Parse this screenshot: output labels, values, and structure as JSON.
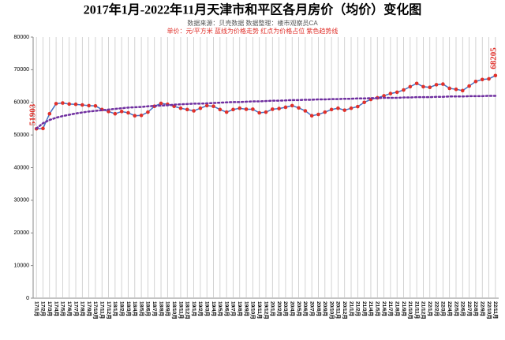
{
  "chart_data": {
    "type": "line",
    "title": "2017年1月-2022年11月天津市和平区各月房价（均价）变化图",
    "subtitle": "数据来源：贝壳数据    数据整理：楼市观察员CA",
    "note": "单价：元/平方米    蓝线为价格走势    红点为价格占位    紫色趋势线",
    "categories": [
      "17/1月",
      "17/2月",
      "17/3月",
      "17/4月",
      "17/5月",
      "17/6月",
      "17/7月",
      "17/8月",
      "17/9月",
      "17/10月",
      "17/11月",
      "17/12月",
      "18/1月",
      "18/2月",
      "18/3月",
      "18/4月",
      "18/5月",
      "18/6月",
      "18/7月",
      "18/8月",
      "18/9月",
      "18/10月",
      "18/11月",
      "18/12月",
      "19/1月",
      "19/2月",
      "19/3月",
      "19/4月",
      "19/5月",
      "19/6月",
      "19/7月",
      "19/8月",
      "19/9月",
      "19/10月",
      "19/11月",
      "19/12月",
      "20/1月",
      "20/2月",
      "20/3月",
      "20/4月",
      "20/5月",
      "20/6月",
      "20/7月",
      "20/8月",
      "20/9月",
      "20/10月",
      "20/11月",
      "20/12月",
      "21/1月",
      "21/2月",
      "21/3月",
      "21/4月",
      "21/5月",
      "21/6月",
      "21/7月",
      "21/8月",
      "21/9月",
      "21/10月",
      "21/11月",
      "21/12月",
      "22/1月",
      "22/2月",
      "22/3月",
      "22/4月",
      "22/5月",
      "22/6月",
      "22/7月",
      "22/8月",
      "22/9月",
      "22/10月",
      "22/11月"
    ],
    "series": [
      {
        "color": "#4472c4",
        "marker_color": "#e0302a",
        "values": [
          51903,
          52000,
          56500,
          59600,
          59800,
          59500,
          59400,
          59200,
          59000,
          58900,
          57800,
          57200,
          56500,
          57200,
          56800,
          55900,
          56000,
          57000,
          58800,
          59700,
          59400,
          58800,
          58200,
          57800,
          57400,
          58200,
          59000,
          58800,
          57800,
          57000,
          57800,
          58200,
          57900,
          57900,
          56800,
          57000,
          57900,
          58100,
          58500,
          59000,
          58300,
          57400,
          55900,
          56300,
          57000,
          57800,
          58200,
          57600,
          58200,
          58700,
          60000,
          60900,
          61400,
          62000,
          62700,
          63100,
          63800,
          64800,
          65800,
          64800,
          64600,
          65400,
          65600,
          64300,
          64000,
          63600,
          65000,
          66400,
          67000,
          67200,
          68205
        ]
      },
      {
        "color": "#7030a0",
        "dashed": true,
        "values": [
          52000,
          53600,
          54600,
          55300,
          55800,
          56200,
          56600,
          56900,
          57200,
          57400,
          57600,
          57800,
          58000,
          58200,
          58400,
          58500,
          58600,
          58800,
          58900,
          59000,
          59100,
          59300,
          59400,
          59500,
          59600,
          59600,
          59700,
          59800,
          59900,
          60000,
          60100,
          60100,
          60200,
          60300,
          60300,
          60400,
          60500,
          60500,
          60600,
          60700,
          60700,
          60800,
          60800,
          60900,
          60900,
          61000,
          61000,
          61100,
          61100,
          61200,
          61200,
          61300,
          61300,
          61400,
          61400,
          61400,
          61500,
          61500,
          61600,
          61600,
          61600,
          61700,
          61700,
          61800,
          61800,
          61800,
          61900,
          61900,
          61900,
          62000,
          62000
        ]
      }
    ],
    "ylim": [
      0,
      80000
    ],
    "yticks": [
      0,
      10000,
      20000,
      30000,
      40000,
      50000,
      60000,
      70000,
      80000
    ],
    "grid": "x"
  }
}
